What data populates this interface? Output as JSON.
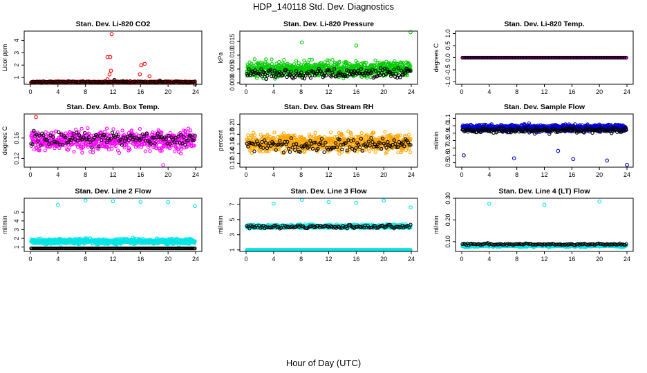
{
  "title": "HDP_140118  Std. Dev. Diagnostics",
  "xlabel": "Hour of Day (UTC)",
  "chart_data": [
    {
      "type": "scatter",
      "title": "Stan. Dev. Li-820 CO2",
      "ylabel": "Licor ppm",
      "xlim": [
        0,
        24
      ],
      "ylim": [
        0.45,
        4.75
      ],
      "xticks": [
        0,
        4,
        8,
        12,
        16,
        20,
        24
      ],
      "yticks": [
        1,
        2,
        3,
        4
      ],
      "ytick_labels": [
        "1",
        "2",
        "3",
        "4"
      ],
      "series": [
        {
          "color": "#ff0000",
          "x": [
            0.4,
            11.2,
            11.5,
            11.7,
            11.6,
            15.9,
            16.1,
            17.3
          ],
          "y": [
            0.66,
            0.85,
            1.25,
            1.55,
            2.65,
            1.25,
            2.0,
            1.1
          ],
          "band": {
            "center": 0.63,
            "spread": 0.09,
            "n": 450,
            "jitter": 0,
            "seed": 11
          }
        },
        {
          "color": "#000000",
          "x": [
            12.2,
            13.5,
            18.8,
            23.9
          ],
          "y": [
            0.8,
            0.7,
            0.75,
            0.45
          ],
          "band": {
            "center": 0.65,
            "spread": 0.08,
            "n": 110,
            "jitter": 0,
            "seed": 12
          }
        }
      ],
      "outliers": [
        {
          "color": "#ff0000",
          "x": 11.8,
          "y": 4.5
        },
        {
          "color": "#ff0000",
          "x": 11.2,
          "y": 2.65
        },
        {
          "color": "#ff0000",
          "x": 16.6,
          "y": 2.1
        }
      ]
    },
    {
      "type": "scatter",
      "title": "Stan. Dev. Li-820 Pressure",
      "ylabel": "kPa",
      "xlim": [
        0,
        24
      ],
      "ylim": [
        -0.0005,
        0.0187
      ],
      "xticks": [
        0,
        4,
        8,
        12,
        16,
        20,
        24
      ],
      "yticks": [
        0,
        0.005,
        0.01,
        0.015
      ],
      "ytick_labels": [
        "0.000",
        "0.005",
        "0.010",
        "0.015"
      ],
      "series": [
        {
          "color": "#00cc00",
          "x": [],
          "y": [],
          "band": {
            "center": 0.005,
            "spread": 0.004,
            "n": 750,
            "jitter": 0.0009,
            "seed": 21
          }
        },
        {
          "color": "#000000",
          "x": [],
          "y": [],
          "band": {
            "center": 0.0035,
            "spread": 0.0025,
            "n": 160,
            "jitter": 0.0005,
            "seed": 22
          }
        }
      ],
      "outliers": [
        {
          "color": "#00cc00",
          "x": 8.1,
          "y": 0.0146
        },
        {
          "color": "#00cc00",
          "x": 16.0,
          "y": 0.0135
        },
        {
          "color": "#00cc00",
          "x": 23.9,
          "y": 0.0183
        }
      ]
    },
    {
      "type": "scatter",
      "title": "Stan. Dev. Li-820 Temp.",
      "ylabel": "degrees C",
      "xlim": [
        0,
        24
      ],
      "ylim": [
        -1.1,
        1.1
      ],
      "xticks": [
        0,
        4,
        8,
        12,
        16,
        20,
        24
      ],
      "yticks": [
        -1,
        -0.5,
        0,
        0.5,
        1
      ],
      "ytick_labels": [
        "-1.0",
        "-0.5",
        "0.0",
        "0.5",
        "1.0"
      ],
      "series": [
        {
          "color": "#ff00ff",
          "x": [],
          "y": [],
          "band": {
            "center": 0.0,
            "spread": 0.0,
            "n": 280,
            "jitter": 0,
            "seed": 31
          }
        },
        {
          "color": "#000000",
          "x": [],
          "y": [],
          "band": {
            "center": 0.0,
            "spread": 0.0,
            "n": 90,
            "jitter": 0,
            "seed": 32
          }
        }
      ],
      "outliers": []
    },
    {
      "type": "scatter",
      "title": "Stan. Dev. Amb. Box Temp.",
      "ylabel": "degrees C",
      "xlim": [
        0,
        24
      ],
      "ylim": [
        0.103,
        0.207
      ],
      "xticks": [
        0,
        4,
        8,
        12,
        16,
        20,
        24
      ],
      "yticks": [
        0.12,
        0.16
      ],
      "ytick_labels": [
        "0.12",
        "0.16"
      ],
      "series": [
        {
          "color": "#ff00ff",
          "x": [],
          "y": [],
          "band": {
            "center": 0.155,
            "spread": 0.027,
            "n": 620,
            "jitter": 0.006,
            "seed": 41
          }
        },
        {
          "color": "#000000",
          "x": [],
          "y": [],
          "band": {
            "center": 0.158,
            "spread": 0.02,
            "n": 120,
            "jitter": 0.004,
            "seed": 42
          }
        }
      ],
      "outliers": [
        {
          "color": "#ff00ff",
          "x": 19.3,
          "y": 0.107
        },
        {
          "color": "#ff0000",
          "x": 0.8,
          "y": 0.201
        }
      ]
    },
    {
      "type": "scatter",
      "title": "Stan. Dev. Gas Stream RH",
      "ylabel": "percent",
      "xlim": [
        0,
        24
      ],
      "ylim": [
        0.112,
        0.222
      ],
      "xticks": [
        0,
        4,
        8,
        12,
        16,
        20,
        24
      ],
      "yticks": [
        0.12,
        0.14,
        0.16,
        0.18,
        0.2
      ],
      "ytick_labels": [
        "0.12",
        "0.14",
        "0.16",
        "0.18",
        "0.20"
      ],
      "series": [
        {
          "color": "#ffa500",
          "x": [],
          "y": [],
          "band": {
            "center": 0.162,
            "spread": 0.026,
            "n": 750,
            "jitter": 0.006,
            "seed": 51
          }
        },
        {
          "color": "#000000",
          "x": [],
          "y": [],
          "band": {
            "center": 0.158,
            "spread": 0.02,
            "n": 130,
            "jitter": 0.004,
            "seed": 52
          }
        }
      ],
      "outliers": []
    },
    {
      "type": "scatter",
      "title": "Stan. Dev. Sample Flow",
      "ylabel": "ml/min",
      "xlim": [
        0,
        24
      ],
      "ylim": [
        0.44,
        1.16
      ],
      "xticks": [
        0,
        4,
        8,
        12,
        16,
        20,
        24
      ],
      "yticks": [
        0.5,
        0.6,
        0.7,
        0.8,
        0.9,
        1.0,
        1.1
      ],
      "ytick_labels": [
        "0.5",
        "0.6",
        "0.7",
        "0.8",
        "0.9",
        "1.0",
        "1.1"
      ],
      "series": [
        {
          "color": "#0000cc",
          "x": [],
          "y": [],
          "band": {
            "center": 0.97,
            "spread": 0.06,
            "n": 950,
            "jitter": 0.03,
            "seed": 61
          }
        },
        {
          "color": "#000000",
          "x": [],
          "y": [],
          "band": {
            "center": 0.94,
            "spread": 0.05,
            "n": 180,
            "jitter": 0.02,
            "seed": 62
          }
        }
      ],
      "outliers": [
        {
          "color": "#0000cc",
          "x": 7.6,
          "y": 0.56
        },
        {
          "color": "#0000cc",
          "x": 16.2,
          "y": 0.55
        },
        {
          "color": "#0000cc",
          "x": 21.1,
          "y": 0.53
        },
        {
          "color": "#0000cc",
          "x": 24.0,
          "y": 0.47
        },
        {
          "color": "#0000cc",
          "x": 0.3,
          "y": 0.6
        },
        {
          "color": "#0000cc",
          "x": 14.0,
          "y": 0.66
        }
      ]
    },
    {
      "type": "scatter",
      "title": "Stan. Dev. Line 2 Flow",
      "ylabel": "ml/min",
      "xlim": [
        0,
        24
      ],
      "ylim": [
        0.5,
        6.6
      ],
      "xticks": [
        0,
        4,
        8,
        12,
        16,
        20,
        24
      ],
      "yticks": [
        1,
        2,
        3,
        4,
        5
      ],
      "ytick_labels": [
        "1",
        "2",
        "3",
        "4",
        "5"
      ],
      "series": [
        {
          "color": "#00e5e5",
          "x": [],
          "y": [],
          "band": {
            "center": 1.65,
            "spread": 0.45,
            "n": 700,
            "jitter": 0,
            "seed": 71
          }
        },
        {
          "color": "#000000",
          "x": [],
          "y": [],
          "band": {
            "center": 0.85,
            "spread": 0.0,
            "n": 160,
            "jitter": 0,
            "seed": 72
          }
        }
      ],
      "outliers": [
        {
          "color": "#00e5e5",
          "x": 4.0,
          "y": 5.85
        },
        {
          "color": "#00e5e5",
          "x": 8.0,
          "y": 6.35
        },
        {
          "color": "#00e5e5",
          "x": 12.0,
          "y": 6.25
        },
        {
          "color": "#00e5e5",
          "x": 16.0,
          "y": 6.2
        },
        {
          "color": "#00e5e5",
          "x": 20.0,
          "y": 6.15
        },
        {
          "color": "#00e5e5",
          "x": 23.9,
          "y": 5.7
        }
      ]
    },
    {
      "type": "scatter",
      "title": "Stan. Dev. Line 3 Flow",
      "ylabel": "ml/min",
      "xlim": [
        0,
        24
      ],
      "ylim": [
        0.8,
        7.8
      ],
      "xticks": [
        0,
        4,
        8,
        12,
        16,
        20,
        24
      ],
      "yticks": [
        1,
        3,
        5,
        7
      ],
      "ytick_labels": [
        "1",
        "3",
        "5",
        "7"
      ],
      "series": [
        {
          "color": "#00e5e5",
          "x": [],
          "y": [],
          "band": {
            "center": 4.1,
            "spread": 0.35,
            "n": 600,
            "jitter": 0,
            "seed": 81
          }
        },
        {
          "color": "#00e5e5",
          "x": [],
          "y": [],
          "band": {
            "center": 1.0,
            "spread": 0.0,
            "n": 240,
            "jitter": 0,
            "seed": 83
          }
        },
        {
          "color": "#000000",
          "x": [],
          "y": [],
          "band": {
            "center": 4.05,
            "spread": 0.35,
            "n": 120,
            "jitter": 0,
            "seed": 82
          }
        }
      ],
      "outliers": [
        {
          "color": "#00e5e5",
          "x": 4.0,
          "y": 7.1
        },
        {
          "color": "#00e5e5",
          "x": 8.1,
          "y": 7.6
        },
        {
          "color": "#00e5e5",
          "x": 12.0,
          "y": 7.3
        },
        {
          "color": "#00e5e5",
          "x": 16.0,
          "y": 7.2
        },
        {
          "color": "#00e5e5",
          "x": 20.0,
          "y": 7.5
        },
        {
          "color": "#00e5e5",
          "x": 23.9,
          "y": 6.6
        }
      ]
    },
    {
      "type": "scatter",
      "title": "Stan. Dev. Line 4 (LT) Flow",
      "ylabel": "ml/min",
      "xlim": [
        0,
        24
      ],
      "ylim": [
        0.055,
        0.3
      ],
      "xticks": [
        0,
        4,
        8,
        12,
        16,
        20,
        24
      ],
      "yticks": [
        0.1,
        0.2,
        0.3
      ],
      "ytick_labels": [
        "0.10",
        "0.20",
        "0.30"
      ],
      "series": [
        {
          "color": "#00e5e5",
          "x": [],
          "y": [],
          "band": {
            "center": 0.082,
            "spread": 0.01,
            "n": 700,
            "jitter": 0,
            "seed": 91
          }
        },
        {
          "color": "#000000",
          "x": [],
          "y": [],
          "band": {
            "center": 0.088,
            "spread": 0.007,
            "n": 130,
            "jitter": 0,
            "seed": 92
          }
        }
      ],
      "outliers": [
        {
          "color": "#00e5e5",
          "x": 4.0,
          "y": 0.275
        },
        {
          "color": "#00e5e5",
          "x": 12.0,
          "y": 0.27
        },
        {
          "color": "#00e5e5",
          "x": 20.0,
          "y": 0.285
        }
      ]
    }
  ]
}
